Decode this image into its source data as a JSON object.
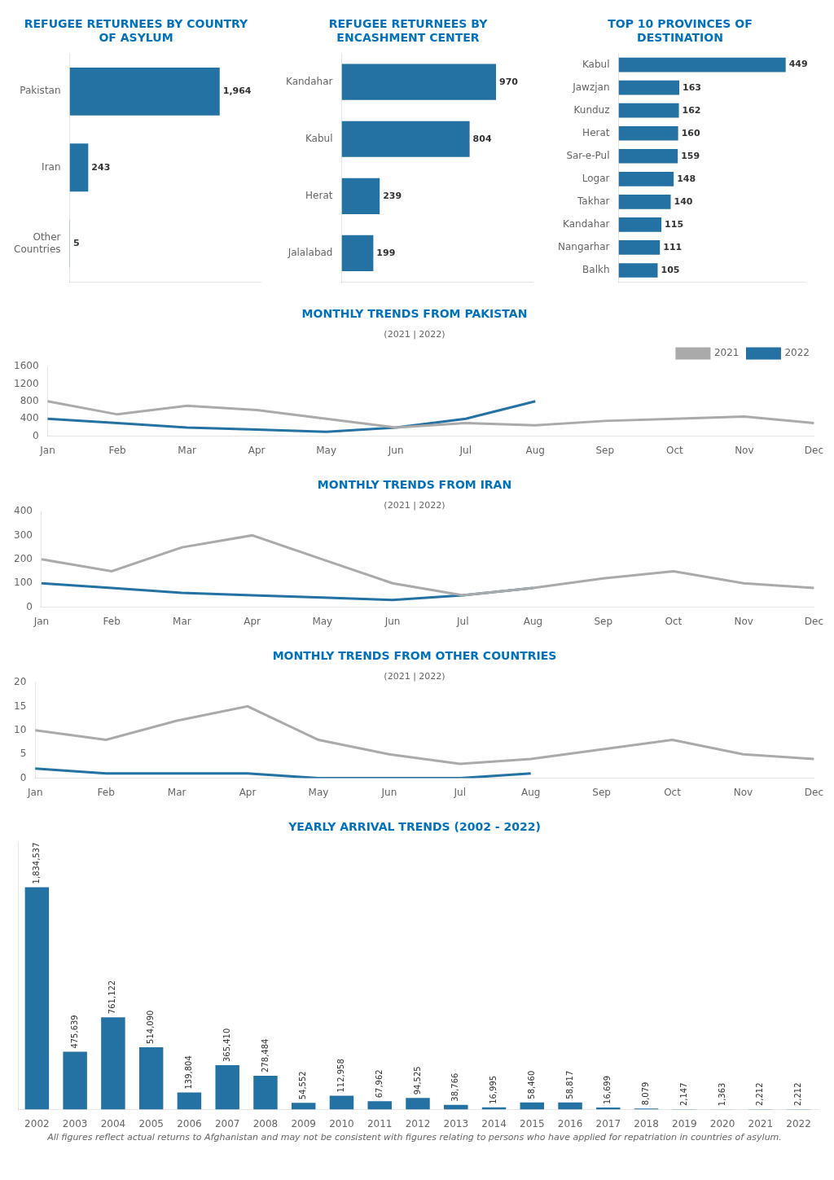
{
  "chart_data": [
    {
      "type": "bar",
      "orientation": "horizontal",
      "title": "REFUGEE RETURNEES BY COUNTRY\nOF ASYLUM",
      "categories": [
        "Pakistan",
        "Iran",
        "Other\nCountries"
      ],
      "values": [
        1964,
        243,
        5
      ],
      "value_labels": [
        "1,964",
        "243",
        "5"
      ],
      "color": "#2471a3",
      "xlim": [
        0,
        2500
      ],
      "data_labels": true,
      "tick_labels": "y",
      "grid": false
    },
    {
      "type": "bar",
      "orientation": "horizontal",
      "title": "REFUGEE RETURNEES BY\nENCASHMENT CENTER",
      "categories": [
        "Kandahar",
        "Kabul",
        "Herat",
        "Jalalabad"
      ],
      "values": [
        970,
        804,
        239,
        199
      ],
      "color": "#2471a3",
      "xlim": [
        0,
        1200
      ],
      "data_labels": true,
      "tick_labels": "y",
      "grid": false
    },
    {
      "type": "bar",
      "orientation": "horizontal",
      "title": "TOP 10 PROVINCES OF\nDESTINATION",
      "categories": [
        "Kabul",
        "Jawzjan",
        "Kunduz",
        "Herat",
        "Sar-e-Pul",
        "Logar",
        "Takhar",
        "Kandahar",
        "Nangarhar",
        "Balkh"
      ],
      "values": [
        449,
        163,
        162,
        160,
        159,
        148,
        140,
        115,
        111,
        105
      ],
      "color": "#2471a3",
      "xlim": [
        0,
        500
      ],
      "data_labels": true,
      "tick_labels": "y",
      "grid": false
    },
    {
      "type": "line",
      "title": "MONTHLY TRENDS FROM PAKISTAN",
      "subtitle": "(2021 | 2022)",
      "categories": [
        "Jan",
        "Feb",
        "Mar",
        "Apr",
        "May",
        "Jun",
        "Jul",
        "Aug",
        "Sep",
        "Oct",
        "Nov",
        "Dec"
      ],
      "series": [
        {
          "name": "2021",
          "color": "#aaaaaa",
          "values": [
            800,
            500,
            700,
            600,
            400,
            200,
            300,
            250,
            350,
            400,
            450,
            300
          ]
        },
        {
          "name": "2022",
          "color": "#2471a3",
          "values": [
            400,
            300,
            200,
            150,
            100,
            200,
            400,
            800,
            null,
            null,
            null,
            null
          ]
        }
      ],
      "ylim": [
        0,
        1600
      ],
      "yticks": [
        0,
        400,
        800,
        1200,
        1600
      ],
      "grid": false,
      "legend": "top-right"
    },
    {
      "type": "line",
      "title": "MONTHLY TRENDS FROM IRAN",
      "subtitle": "(2021 | 2022)",
      "categories": [
        "Jan",
        "Feb",
        "Mar",
        "Apr",
        "May",
        "Jun",
        "Jul",
        "Aug",
        "Sep",
        "Oct",
        "Nov",
        "Dec"
      ],
      "series": [
        {
          "name": "2021",
          "color": "#aaaaaa",
          "values": [
            200,
            150,
            250,
            300,
            200,
            100,
            50,
            80,
            120,
            150,
            100,
            80
          ]
        },
        {
          "name": "2022",
          "color": "#2471a3",
          "values": [
            100,
            80,
            60,
            50,
            40,
            30,
            50,
            80,
            null,
            null,
            null,
            null
          ]
        }
      ],
      "ylim": [
        0,
        400
      ],
      "yticks": [
        0,
        100,
        200,
        300,
        400
      ],
      "grid": false
    },
    {
      "type": "line",
      "title": "MONTHLY TRENDS FROM OTHER COUNTRIES",
      "subtitle": "(2021 | 2022)",
      "categories": [
        "Jan",
        "Feb",
        "Mar",
        "Apr",
        "May",
        "Jun",
        "Jul",
        "Aug",
        "Sep",
        "Oct",
        "Nov",
        "Dec"
      ],
      "series": [
        {
          "name": "2021",
          "color": "#aaaaaa",
          "values": [
            10,
            8,
            12,
            15,
            8,
            5,
            3,
            4,
            6,
            8,
            5,
            4
          ]
        },
        {
          "name": "2022",
          "color": "#2471a3",
          "values": [
            2,
            1,
            1,
            1,
            0,
            0,
            0,
            1,
            null,
            null,
            null,
            null
          ]
        }
      ],
      "ylim": [
        0,
        20
      ],
      "yticks": [
        0,
        5,
        10,
        15,
        20
      ],
      "grid": false
    },
    {
      "type": "bar",
      "title": "YEARLY ARRIVAL TRENDS (2002 - 2022)",
      "categories": [
        "2002",
        "2003",
        "2004",
        "2005",
        "2006",
        "2007",
        "2008",
        "2009",
        "2010",
        "2011",
        "2012",
        "2013",
        "2014",
        "2015",
        "2016",
        "2017",
        "2018",
        "2019",
        "2020",
        "2021",
        "2022"
      ],
      "values": [
        1834537,
        475639,
        761122,
        514090,
        139804,
        365410,
        278484,
        54552,
        112958,
        67962,
        94525,
        38766,
        16995,
        58460,
        58817,
        16699,
        8079,
        2147,
        1363,
        2212,
        2212
      ],
      "value_labels": [
        "1,834,537",
        "475,639",
        "761,122",
        "514,090",
        "139,804",
        "365,410",
        "278,484",
        "54,552",
        "112,958",
        "67,962",
        "94,525",
        "38,766",
        "16,995",
        "58,460",
        "58,817",
        "16,699",
        "8,079",
        "2,147",
        "1,363",
        "2,212",
        "2,212"
      ],
      "color": "#2471a3",
      "ylim": [
        0,
        2201444.4
      ],
      "data_labels": true,
      "tick_labels": "x",
      "grid": false,
      "annotations": [
        "All figures reflect actual returns to Afghanistan and may not be consistent with figures relating to persons who have applied for repatriation in countries of asylum."
      ]
    }
  ]
}
